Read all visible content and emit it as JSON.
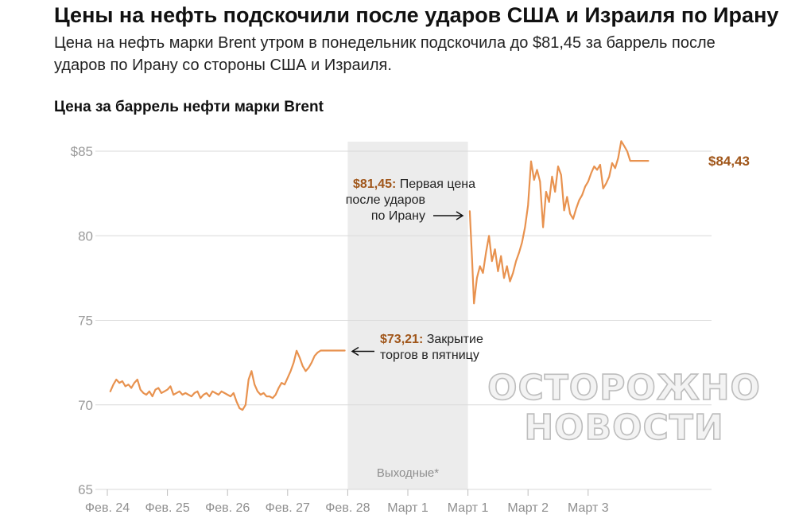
{
  "headline": "Цены на нефть подскочили после ударов США и Израиля по Ирану",
  "subtitle": "Цена на нефть марки Brent утром в понедельник подскочила до $81,45 за баррель после ударов по Ирану со стороны США и Израиля.",
  "watermark": {
    "line1": "ОСТОРОЖНО",
    "line2": "НОВОСТИ"
  },
  "colors": {
    "line": "#e8924f",
    "accent": "#a0561a",
    "shade": "#ececec"
  },
  "chart_data": {
    "type": "line",
    "title": "Цена за баррель нефти марки Brent",
    "xlabel": "",
    "ylabel": "",
    "ylim": [
      65,
      85
    ],
    "grid": true,
    "x_ticks": [
      "Фев. 24",
      "Фев. 25",
      "Фев. 26",
      "Фев. 27",
      "Фев. 28",
      "Март 1",
      "Март 1",
      "Март 2",
      "Март 3"
    ],
    "y_ticks": [
      {
        "value": 85,
        "label": "$85"
      },
      {
        "value": 80,
        "label": "80"
      },
      {
        "value": 75,
        "label": "75"
      },
      {
        "value": 70,
        "label": "70"
      },
      {
        "value": 65,
        "label": "65"
      }
    ],
    "shaded_region": {
      "from": 4,
      "to": 6,
      "label": "Выходные*"
    },
    "series": [
      {
        "segment": "before_weekend",
        "x": [
          0.05,
          0.1,
          0.15,
          0.2,
          0.25,
          0.3,
          0.35,
          0.4,
          0.45,
          0.5,
          0.55,
          0.6,
          0.65,
          0.7,
          0.75,
          0.8,
          0.85,
          0.9,
          0.95,
          1.0,
          1.05,
          1.1,
          1.15,
          1.2,
          1.25,
          1.3,
          1.35,
          1.4,
          1.45,
          1.5,
          1.55,
          1.6,
          1.65,
          1.7,
          1.75,
          1.8,
          1.85,
          1.9,
          1.95,
          2.0,
          2.05,
          2.1,
          2.15,
          2.2,
          2.25,
          2.3,
          2.35,
          2.4,
          2.45,
          2.5,
          2.55,
          2.6,
          2.65,
          2.7,
          2.75,
          2.8,
          2.85,
          2.9,
          2.95,
          3.0,
          3.05,
          3.1,
          3.15,
          3.2,
          3.25,
          3.3,
          3.35,
          3.4,
          3.45,
          3.5,
          3.55,
          3.6,
          3.65,
          3.7,
          3.75,
          3.8,
          3.85,
          3.9,
          3.95
        ],
        "y": [
          70.8,
          71.2,
          71.5,
          71.3,
          71.4,
          71.1,
          71.2,
          71.0,
          71.3,
          71.5,
          70.9,
          70.7,
          70.6,
          70.8,
          70.5,
          70.9,
          71.0,
          70.7,
          70.8,
          70.9,
          71.1,
          70.6,
          70.7,
          70.8,
          70.6,
          70.7,
          70.6,
          70.5,
          70.7,
          70.8,
          70.4,
          70.6,
          70.7,
          70.5,
          70.8,
          70.7,
          70.6,
          70.8,
          70.7,
          70.6,
          70.5,
          70.7,
          70.2,
          69.8,
          69.7,
          70.0,
          71.5,
          72.0,
          71.2,
          70.8,
          70.6,
          70.7,
          70.5,
          70.5,
          70.4,
          70.6,
          71.0,
          71.3,
          71.2,
          71.6,
          72.0,
          72.5,
          73.2,
          72.8,
          72.3,
          72.0,
          72.2,
          72.5,
          72.9,
          73.1,
          73.21,
          73.21,
          73.21,
          73.21,
          73.21,
          73.21,
          73.21,
          73.21,
          73.21
        ]
      },
      {
        "segment": "after_weekend",
        "x": [
          6.03,
          6.07,
          6.1,
          6.15,
          6.2,
          6.25,
          6.3,
          6.35,
          6.4,
          6.45,
          6.5,
          6.55,
          6.6,
          6.65,
          6.7,
          6.75,
          6.8,
          6.85,
          6.9,
          6.95,
          7.0,
          7.05,
          7.1,
          7.15,
          7.2,
          7.25,
          7.3,
          7.35,
          7.4,
          7.45,
          7.5,
          7.55,
          7.6,
          7.65,
          7.7,
          7.75,
          7.8,
          7.85,
          7.9,
          7.95,
          8.0,
          8.05,
          8.1,
          8.15,
          8.2,
          8.25,
          8.3,
          8.35,
          8.4,
          8.45,
          8.5,
          8.55,
          8.6,
          8.65,
          8.7,
          8.75,
          8.8,
          8.85,
          8.9,
          8.95,
          9.0
        ],
        "y": [
          81.45,
          78.5,
          76.0,
          77.5,
          78.2,
          77.8,
          79.0,
          80.0,
          78.5,
          79.2,
          77.9,
          78.8,
          77.5,
          78.2,
          77.3,
          77.8,
          78.5,
          79.0,
          79.6,
          80.5,
          81.8,
          84.4,
          83.3,
          83.9,
          83.2,
          80.5,
          82.6,
          82.0,
          83.5,
          82.6,
          84.1,
          83.6,
          81.5,
          82.3,
          81.3,
          81.0,
          81.6,
          82.1,
          82.4,
          82.9,
          83.2,
          83.7,
          84.1,
          83.9,
          84.2,
          82.8,
          83.1,
          83.5,
          84.3,
          84.0,
          84.6,
          85.6,
          85.3,
          85.0,
          84.43,
          84.43,
          84.43,
          84.43,
          84.43,
          84.43,
          84.43
        ]
      }
    ],
    "annotations": [
      {
        "strong": "$81,45:",
        "text": [
          "Первая цена",
          "после ударов",
          "по Ирану"
        ],
        "value": 81.45
      },
      {
        "strong": "$73,21:",
        "text": [
          "Закрытие",
          "торгов в пятницу"
        ],
        "value": 73.21
      }
    ],
    "end_label": {
      "text": "$84,43",
      "value": 84.43
    }
  }
}
